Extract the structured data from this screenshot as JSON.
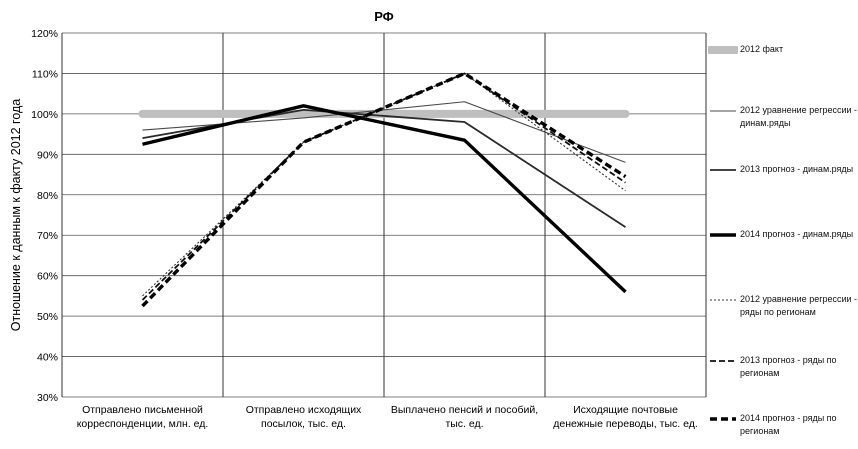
{
  "chart_data": {
    "type": "line",
    "title": "РФ",
    "ylabel": "Отношение к данным к факту 2012 года",
    "xlabel": "",
    "categories": [
      [
        "Отправлено письменной",
        "корреспонденции, млн. ед."
      ],
      [
        "Отправлено исходящих",
        "посылок, тыс. ед."
      ],
      [
        "Выплачено пенсий и пособий,",
        "тыс. ед."
      ],
      [
        "Исходящие почтовые",
        "денежные переводы, тыс. ед."
      ]
    ],
    "yticks": [
      "30%",
      "40%",
      "50%",
      "60%",
      "70%",
      "80%",
      "90%",
      "100%",
      "110%",
      "120%"
    ],
    "ylim": [
      30,
      120
    ],
    "grid": true,
    "legend_position": "right",
    "series": [
      {
        "name": "2012 факт",
        "values": [
          100,
          100,
          100,
          100
        ],
        "style": "thick-gray",
        "color": "#bfbfbf"
      },
      {
        "name": "2012 уравнение регрессии - динам.ряды",
        "values": [
          96,
          99,
          103,
          88
        ],
        "style": "thin-solid",
        "color": "#4a4a4a"
      },
      {
        "name": "2013 прогноз - динам.ряды",
        "values": [
          94,
          101,
          98,
          72
        ],
        "style": "medium-solid",
        "color": "#2a2a2a"
      },
      {
        "name": "2014 прогноз - динам.ряды",
        "values": [
          92.5,
          102,
          93.5,
          56
        ],
        "style": "thick-solid",
        "color": "#000000"
      },
      {
        "name": "2012 уравнение регрессии - ряды по регионам",
        "values": [
          55,
          93,
          110,
          81
        ],
        "style": "thin-dotted",
        "color": "#333333"
      },
      {
        "name": "2013 прогноз - ряды по регионам",
        "values": [
          54,
          93,
          110,
          83
        ],
        "style": "medium-dashed",
        "color": "#111111"
      },
      {
        "name": "2014 прогноз - ряды по регионам",
        "values": [
          52.5,
          93,
          110,
          84.5
        ],
        "style": "thick-dashed",
        "color": "#000000"
      }
    ]
  }
}
